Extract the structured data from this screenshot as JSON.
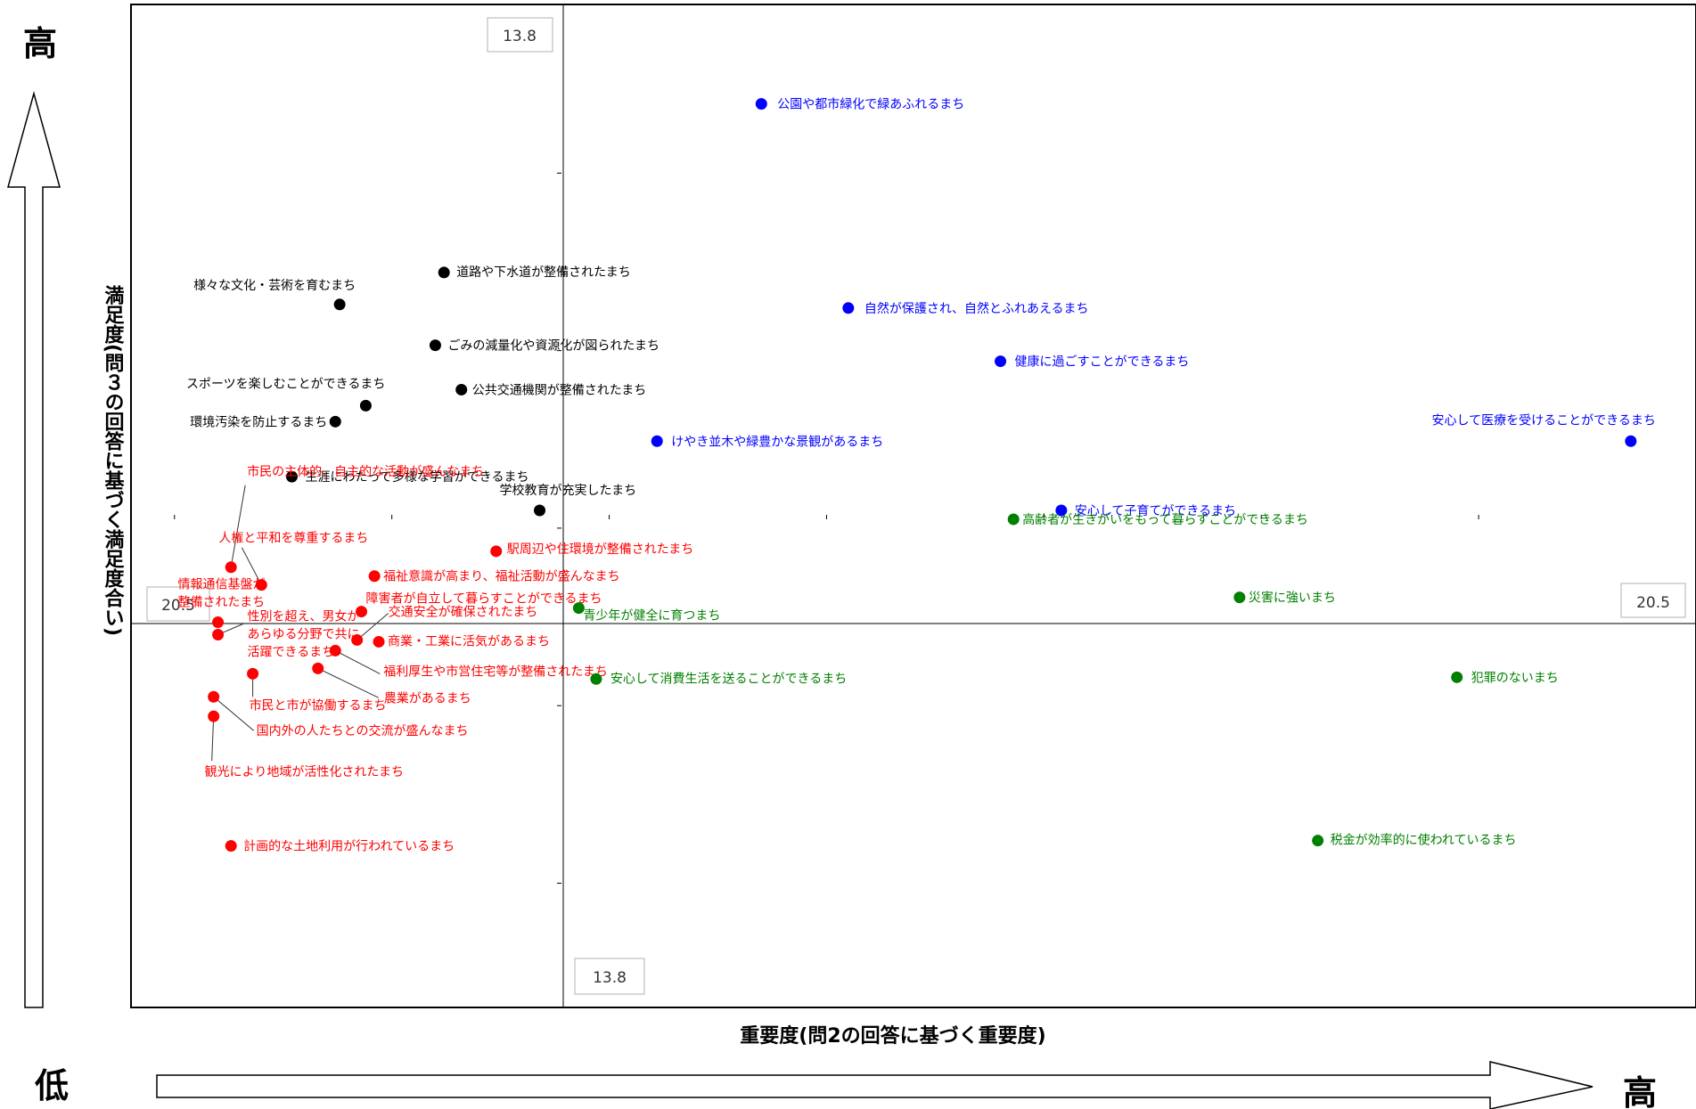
{
  "chart_data": {
    "type": "scatter",
    "xlabel": "重要度(問2の回答に基づく重要度)",
    "ylabel": "満足度(問３の回答に基づく満足度合い)",
    "corner_labels": {
      "top_left": "高",
      "bottom_left": "低",
      "bottom_right": "高"
    },
    "reference": {
      "x": 13.8,
      "y": 20.5,
      "x_label": "13.8",
      "y_label": "20.5"
    },
    "xlim": [
      4.0,
      40.0
    ],
    "ylim": [
      -7.0,
      49.5
    ],
    "colors": {
      "q1": "#0000ff",
      "q2": "#000000",
      "q3": "#ff0000",
      "q4": "#008000"
    },
    "points": [
      {
        "label": "公園や都市緑化で緑あふれるまち",
        "x": 18.5,
        "y": 43.9,
        "color": "q1"
      },
      {
        "label": "自然が保護され、自然とふれあえるまち",
        "x": 20.5,
        "y": 32.4,
        "color": "q1"
      },
      {
        "label": "健康に過ごすことができるまち",
        "x": 24.0,
        "y": 29.4,
        "color": "q1"
      },
      {
        "label": "けやき並木や緑豊かな景観があるまち",
        "x": 16.1,
        "y": 24.9,
        "color": "q1"
      },
      {
        "label": "安心して医療を受けることができるまち",
        "x": 38.5,
        "y": 24.9,
        "color": "q1"
      },
      {
        "label": "安心して子育てができるまち",
        "x": 25.4,
        "y": 21.0,
        "color": "q1"
      },
      {
        "label": "道路や下水道が整備されたまち",
        "x": 11.2,
        "y": 34.4,
        "color": "q2"
      },
      {
        "label": "様々な文化・芸術を育むまち",
        "x": 8.8,
        "y": 32.6,
        "color": "q2"
      },
      {
        "label": "ごみの減量化や資源化が図られたまち",
        "x": 11.0,
        "y": 30.3,
        "color": "q2"
      },
      {
        "label": "公共交通機関が整備されたまち",
        "x": 11.6,
        "y": 27.8,
        "color": "q2"
      },
      {
        "label": "スポーツを楽しむことができるまち",
        "x": 9.4,
        "y": 26.9,
        "color": "q2"
      },
      {
        "label": "環境汚染を防止するまち",
        "x": 8.7,
        "y": 26.0,
        "color": "q2"
      },
      {
        "label": "生涯にわたって多様な学習ができるまち",
        "x": 7.7,
        "y": 22.9,
        "color": "q2"
      },
      {
        "label": "学校教育が充実したまち",
        "x": 13.4,
        "y": 21.0,
        "color": "q2"
      },
      {
        "label": "市民の主体的、自主的な活動が盛んなまち",
        "x": 6.3,
        "y": 17.8,
        "color": "q3"
      },
      {
        "label": "人権と平和を尊重するまち",
        "x": 7.0,
        "y": 16.8,
        "color": "q3"
      },
      {
        "label": "駅周辺や住環境が整備されたまち",
        "x": 12.4,
        "y": 18.7,
        "color": "q3"
      },
      {
        "label": "福祉意識が高まり、福祉活動が盛んなまち",
        "x": 9.6,
        "y": 17.3,
        "color": "q3"
      },
      {
        "label": "情報通信基盤が整備されたまち",
        "x": 6.0,
        "y": 14.7,
        "color": "q3"
      },
      {
        "label": "性別を超え、男女があらゆる分野で共に活躍できるまち",
        "x": 6.0,
        "y": 14.0,
        "color": "q3"
      },
      {
        "label": "障害者が自立して暮らすことができるまち",
        "x": 9.3,
        "y": 15.3,
        "color": "q3"
      },
      {
        "label": "交通安全が確保されたまち",
        "x": 9.2,
        "y": 13.7,
        "color": "q3"
      },
      {
        "label": "商業・工業に活気があるまち",
        "x": 9.7,
        "y": 13.6,
        "color": "q3"
      },
      {
        "label": "福利厚生や市営住宅等が整備されたまち",
        "x": 8.7,
        "y": 13.1,
        "color": "q3"
      },
      {
        "label": "農業があるまち",
        "x": 8.3,
        "y": 12.1,
        "color": "q3"
      },
      {
        "label": "市民と市が協働するまち",
        "x": 6.8,
        "y": 11.8,
        "color": "q3"
      },
      {
        "label": "国内外の人たちとの交流が盛んなまち",
        "x": 5.9,
        "y": 10.5,
        "color": "q3"
      },
      {
        "label": "観光により地域が活性化されたまち",
        "x": 5.9,
        "y": 9.4,
        "color": "q3"
      },
      {
        "label": "計画的な土地利用が行われているまち",
        "x": 6.3,
        "y": 2.1,
        "color": "q3"
      },
      {
        "label": "高齢者が生きがいをもって暮らすことができるまち",
        "x": 24.3,
        "y": 20.5,
        "color": "q4"
      },
      {
        "label": "災害に強いまち",
        "x": 29.5,
        "y": 16.1,
        "color": "q4"
      },
      {
        "label": "青少年が健全に育つまち",
        "x": 14.3,
        "y": 15.5,
        "color": "q4"
      },
      {
        "label": "安心して消費生活を送ることができるまち",
        "x": 14.7,
        "y": 11.5,
        "color": "q4"
      },
      {
        "label": "犯罪のないまち",
        "x": 34.5,
        "y": 11.6,
        "color": "q4"
      },
      {
        "label": "税金が効率的に使われているまち",
        "x": 31.3,
        "y": 2.4,
        "color": "q4"
      }
    ]
  }
}
